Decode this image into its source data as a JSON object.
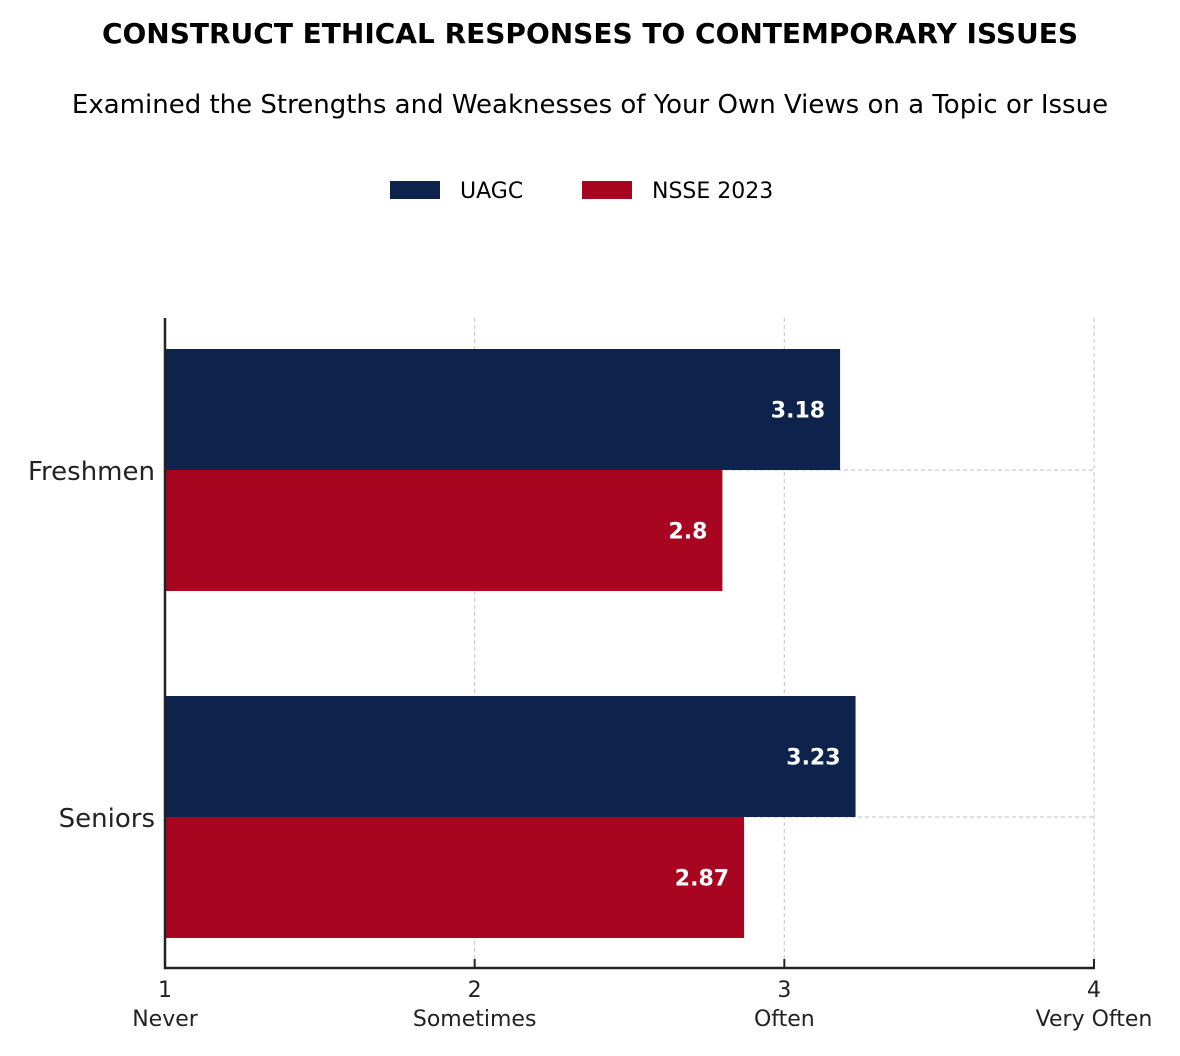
{
  "chart_data": {
    "type": "bar",
    "orientation": "horizontal",
    "title": "CONSTRUCT ETHICAL RESPONSES TO CONTEMPORARY ISSUES",
    "subtitle": "Examined the Strengths and Weaknesses of Your Own Views on a Topic or Issue",
    "xlabel": "",
    "ylabel": "",
    "categories": [
      "Freshmen",
      "Seniors"
    ],
    "series": [
      {
        "name": "UAGC",
        "color": "#0d234b",
        "values": [
          3.18,
          3.23
        ],
        "labels": [
          "3.18",
          "3.23"
        ]
      },
      {
        "name": "NSSE 2023",
        "color": "#a80520",
        "values": [
          2.8,
          2.87
        ],
        "labels": [
          "2.8",
          "2.87"
        ]
      }
    ],
    "xlim": [
      1,
      4
    ],
    "xticks": [
      {
        "value": 1,
        "number": "1",
        "label": "Never"
      },
      {
        "value": 2,
        "number": "2",
        "label": "Sometimes"
      },
      {
        "value": 3,
        "number": "3",
        "label": "Often"
      },
      {
        "value": 4,
        "number": "4",
        "label": "Very Often"
      }
    ],
    "grid": true,
    "legend_position": "top-center"
  }
}
